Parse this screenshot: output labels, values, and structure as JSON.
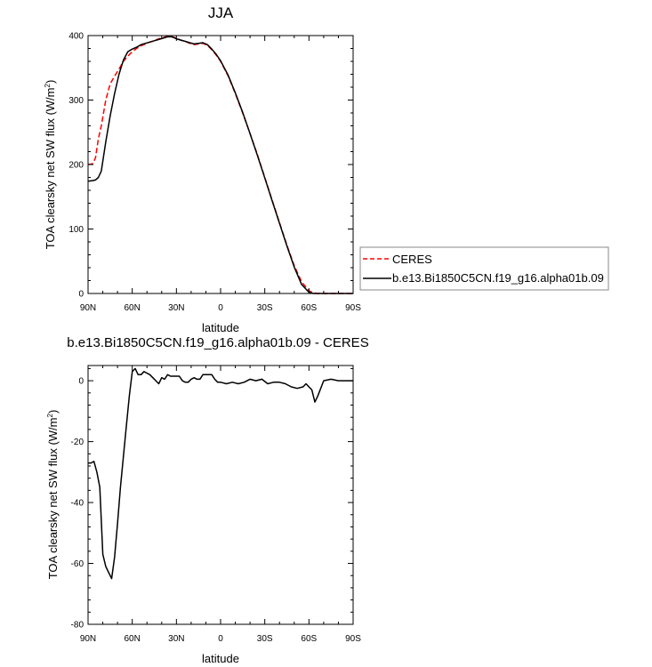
{
  "colors": {
    "ceres": "#ff0000",
    "model": "#000000",
    "axis": "#000000"
  },
  "chart_data": [
    {
      "type": "line",
      "title": "JJA",
      "xlabel": "latitude",
      "ylabel": "TOA clearsky net SW flux (W/m",
      "ylabel_sup": "2",
      "ylabel_end": ")",
      "xlim": [
        90,
        -90
      ],
      "ylim": [
        0,
        400
      ],
      "x_ticks": [
        90,
        60,
        30,
        0,
        -30,
        -60,
        -90
      ],
      "x_tick_labels": [
        "90N",
        "60N",
        "30N",
        "0",
        "30S",
        "60S",
        "90S"
      ],
      "y_ticks": [
        0,
        100,
        200,
        300,
        400
      ],
      "y_tick_labels": [
        "0",
        "100",
        "200",
        "300",
        "400"
      ],
      "legend": "right, outside plot",
      "series": [
        {
          "name": "CERES",
          "style": "dashed",
          "color": "#ff0000",
          "x": [
            90,
            87,
            85,
            83,
            81,
            78,
            75,
            72,
            69,
            66,
            63,
            60,
            57,
            54,
            51,
            48,
            45,
            42,
            39,
            36,
            33,
            30,
            27,
            24,
            21,
            18,
            15,
            12,
            9,
            6,
            3,
            0,
            -5,
            -10,
            -15,
            -20,
            -25,
            -30,
            -35,
            -40,
            -45,
            -50,
            -55,
            -60,
            -63,
            -66,
            -69,
            -72,
            -75,
            -78,
            -81,
            -84,
            -87,
            -90
          ],
          "y": [
            200,
            201,
            210,
            240,
            260,
            300,
            325,
            337,
            348,
            360,
            368,
            375,
            380,
            384,
            387,
            390,
            392,
            395,
            397,
            399,
            398,
            396,
            393,
            391,
            388,
            386,
            387,
            388,
            385,
            378,
            370,
            360,
            338,
            310,
            280,
            248,
            215,
            180,
            145,
            110,
            75,
            43,
            18,
            4,
            1,
            0,
            0,
            0,
            0,
            0,
            0,
            0,
            0,
            0
          ]
        },
        {
          "name": "b.e13.Bi1850C5CN.f19_g16.alpha01b.09",
          "style": "solid",
          "color": "#000000",
          "x": [
            90,
            87,
            85,
            83,
            81,
            78,
            75,
            72,
            69,
            66,
            63,
            60,
            57,
            54,
            51,
            48,
            45,
            42,
            39,
            36,
            33,
            30,
            27,
            24,
            21,
            18,
            15,
            12,
            9,
            6,
            3,
            0,
            -5,
            -10,
            -15,
            -20,
            -25,
            -30,
            -35,
            -40,
            -45,
            -50,
            -55,
            -60,
            -63,
            -66,
            -69,
            -72,
            -75,
            -78,
            -81,
            -84,
            -87,
            -90
          ],
          "y": [
            174,
            175,
            176,
            180,
            190,
            235,
            275,
            310,
            340,
            362,
            375,
            379,
            382,
            386,
            388,
            390,
            392,
            394,
            396,
            398,
            398,
            395,
            393,
            391,
            389,
            387,
            388,
            389,
            386,
            379,
            371,
            361,
            339,
            311,
            281,
            248,
            214,
            179,
            144,
            109,
            74,
            41,
            14,
            2,
            0,
            0,
            0,
            0,
            0,
            0,
            0,
            0,
            0,
            0
          ]
        }
      ]
    },
    {
      "type": "line",
      "title": "b.e13.Bi1850C5CN.f19_g16.alpha01b.09 - CERES",
      "xlabel": "latitude",
      "ylabel": "TOA clearsky net SW flux (W/m",
      "ylabel_sup": "2",
      "ylabel_end": ")",
      "xlim": [
        90,
        -90
      ],
      "ylim": [
        -80,
        5
      ],
      "x_ticks": [
        90,
        60,
        30,
        0,
        -30,
        -60,
        -90
      ],
      "x_tick_labels": [
        "90N",
        "60N",
        "30N",
        "0",
        "30S",
        "60S",
        "90S"
      ],
      "y_ticks": [
        -80,
        -60,
        -40,
        -20,
        0
      ],
      "y_tick_labels": [
        "-80",
        "-60",
        "-40",
        "-20",
        "0"
      ],
      "series": [
        {
          "name": "",
          "style": "solid",
          "color": "#000000",
          "x": [
            90,
            88,
            86,
            84,
            82,
            80,
            78,
            76,
            74,
            72,
            70,
            68,
            66,
            64,
            62,
            60,
            58,
            56,
            54,
            52,
            50,
            48,
            46,
            44,
            42,
            40,
            38,
            36,
            34,
            32,
            30,
            28,
            26,
            24,
            22,
            20,
            18,
            16,
            14,
            12,
            10,
            8,
            6,
            4,
            2,
            0,
            -4,
            -8,
            -12,
            -16,
            -20,
            -24,
            -28,
            -32,
            -36,
            -40,
            -44,
            -48,
            -52,
            -56,
            -58,
            -60,
            -62,
            -64,
            -66,
            -70,
            -75,
            -80,
            -85,
            -90
          ],
          "y": [
            -27,
            -27,
            -26.5,
            -30,
            -35,
            -57,
            -61,
            -63,
            -65,
            -58,
            -47,
            -35,
            -25,
            -15,
            -5,
            3,
            4,
            2,
            2,
            3,
            2.5,
            2,
            1,
            0,
            -1,
            1,
            0.5,
            2,
            1.5,
            1.5,
            1.5,
            1.5,
            0,
            -0.5,
            -0.5,
            0.5,
            1,
            0.5,
            0.5,
            2,
            2,
            2,
            2,
            0.5,
            -0.5,
            -0.5,
            -1,
            -0.5,
            -1,
            -0.5,
            0.5,
            0,
            0.5,
            -1,
            -0.5,
            -0.5,
            -1,
            -2,
            -2.5,
            -2,
            -1,
            -2,
            -3,
            -7,
            -5,
            0,
            0.5,
            0,
            0,
            0
          ]
        }
      ]
    }
  ]
}
